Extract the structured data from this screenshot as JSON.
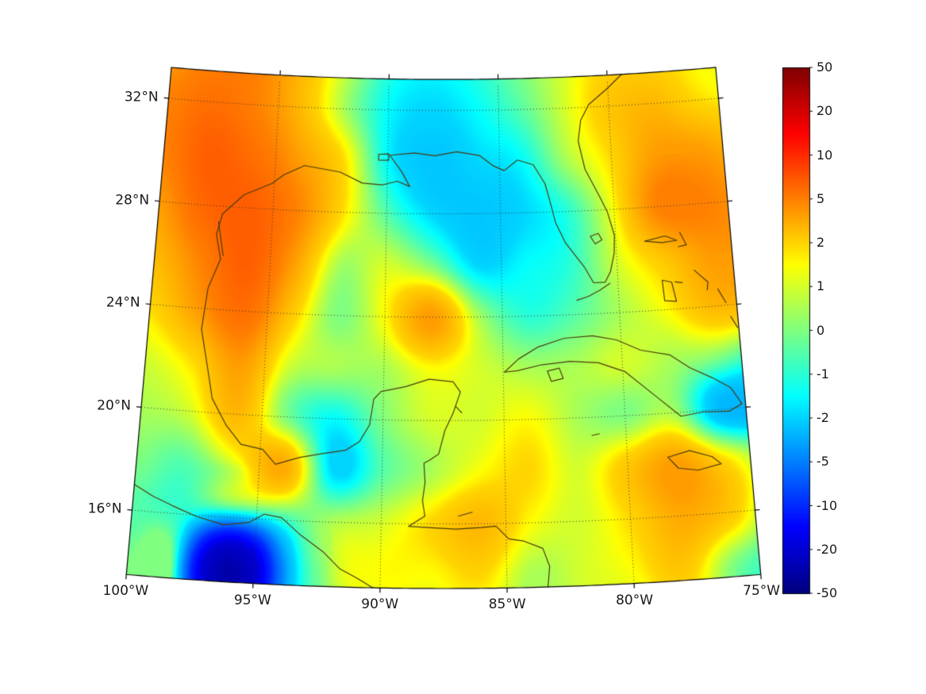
{
  "figure": {
    "background": "#ffffff"
  },
  "map": {
    "projection": {
      "type": "equidistant_conic",
      "std_lat1": 18,
      "std_lat2": 30,
      "central_lon": -87.5
    },
    "extent": {
      "lon_min": -100,
      "lon_max": -75,
      "lat_min": 13.5,
      "lat_max": 33.2
    },
    "grid": {
      "lat_lines": [
        16,
        20,
        24,
        28,
        32
      ],
      "lon_lines": [
        -95,
        -90,
        -85,
        -80
      ],
      "style": "dotted",
      "color": "#333333"
    },
    "border_color": "#000000",
    "coastline_color": "#4a3a0e"
  },
  "axes": {
    "label_color": "#1a1a1a",
    "lat_ticks": [
      {
        "value": 16,
        "label": "16°N"
      },
      {
        "value": 20,
        "label": "20°N"
      },
      {
        "value": 24,
        "label": "24°N"
      },
      {
        "value": 28,
        "label": "28°N"
      },
      {
        "value": 32,
        "label": "32°N"
      }
    ],
    "lon_ticks": [
      {
        "value": -100,
        "label": "100°W"
      },
      {
        "value": -95,
        "label": "95°W"
      },
      {
        "value": -90,
        "label": "90°W"
      },
      {
        "value": -85,
        "label": "85°W"
      },
      {
        "value": -80,
        "label": "80°W"
      },
      {
        "value": -75,
        "label": "75°W"
      }
    ]
  },
  "colorbar": {
    "orientation": "vertical",
    "colormap": "jet",
    "border_color": "#000000",
    "ticks": [
      {
        "value": 50,
        "label": "50"
      },
      {
        "value": 20,
        "label": "20"
      },
      {
        "value": 10,
        "label": "10"
      },
      {
        "value": 5,
        "label": "5"
      },
      {
        "value": 2,
        "label": "2"
      },
      {
        "value": 1,
        "label": "1"
      },
      {
        "value": 0,
        "label": "0"
      },
      {
        "value": -1,
        "label": "-1"
      },
      {
        "value": -2,
        "label": "-2"
      },
      {
        "value": -5,
        "label": "-5"
      },
      {
        "value": -10,
        "label": "-10"
      },
      {
        "value": -20,
        "label": "-20"
      },
      {
        "value": -50,
        "label": "-50"
      }
    ]
  },
  "chart_data": {
    "type": "heatmap",
    "title": "",
    "xlabel": "",
    "ylabel": "",
    "x_axis_ticks": [
      "100°W",
      "95°W",
      "90°W",
      "85°W",
      "80°W",
      "75°W"
    ],
    "y_axis_ticks": [
      "16°N",
      "20°N",
      "24°N",
      "28°N",
      "32°N"
    ],
    "colormap": "jet",
    "scale_ticks": [
      -50,
      -20,
      -10,
      -5,
      -2,
      -1,
      0,
      1,
      2,
      5,
      10,
      20,
      50
    ],
    "lons": [
      -100,
      -98,
      -96,
      -94,
      -92,
      -90,
      -88,
      -86,
      -84,
      -82,
      -80,
      -78,
      -76,
      -74
    ],
    "lats": [
      34,
      32,
      30,
      28,
      26,
      24,
      22,
      20,
      18,
      16,
      14,
      12
    ],
    "values": [
      [
        4,
        5,
        5,
        3,
        1,
        -1,
        -1.5,
        -1,
        0,
        1,
        2,
        2,
        1.5,
        1
      ],
      [
        5,
        6,
        5,
        3,
        0.5,
        -1.5,
        -2,
        -1.5,
        -0.5,
        1,
        2.5,
        3,
        2,
        1.5
      ],
      [
        5,
        7,
        6,
        4,
        2,
        -1.5,
        -2.5,
        -2,
        -1.5,
        0.5,
        2,
        4,
        4,
        3
      ],
      [
        4,
        6.5,
        7,
        5,
        2,
        -0.5,
        -2,
        -2.5,
        -2,
        -1,
        1.5,
        5,
        5,
        4
      ],
      [
        3,
        5,
        7,
        4,
        0.5,
        1,
        0,
        -2,
        -1.5,
        -1,
        1,
        2.5,
        4,
        4
      ],
      [
        2,
        4,
        6,
        2.5,
        0,
        1.5,
        4,
        0.5,
        -1,
        -0.5,
        0.5,
        1.5,
        3,
        3
      ],
      [
        1,
        2,
        4,
        1,
        0.5,
        0.5,
        1.5,
        1,
        0.5,
        0.5,
        1,
        0.5,
        0,
        -1
      ],
      [
        0.5,
        1,
        3,
        0,
        -1.5,
        0,
        1,
        1,
        1.5,
        0.5,
        0,
        0.5,
        -3,
        -3
      ],
      [
        0,
        -0.5,
        1,
        3.5,
        -2,
        -0.5,
        0.5,
        1.5,
        2,
        1,
        2.5,
        4,
        2,
        0
      ],
      [
        -0.5,
        -1,
        -3,
        -1,
        0.5,
        1,
        2,
        3,
        1.5,
        1,
        2,
        3.5,
        2.5,
        0
      ],
      [
        0,
        -2,
        -35,
        -6,
        0.5,
        1.5,
        1.5,
        2,
        0.5,
        1,
        1.5,
        2.5,
        0,
        -1
      ],
      [
        0,
        -1,
        -15,
        -3,
        0,
        1,
        1,
        1,
        0.5,
        1,
        1,
        1.5,
        0,
        -1
      ]
    ]
  },
  "coastlines": [
    [
      [
        -97.15,
        25.95
      ],
      [
        -97.4,
        26.9
      ],
      [
        -97.2,
        27.7
      ],
      [
        -96.3,
        28.5
      ],
      [
        -95.1,
        29.0
      ],
      [
        -94.6,
        29.35
      ],
      [
        -93.7,
        29.75
      ],
      [
        -92.1,
        29.55
      ],
      [
        -91.1,
        29.15
      ],
      [
        -90.2,
        29.1
      ],
      [
        -89.55,
        29.25
      ],
      [
        -89.0,
        29.05
      ],
      [
        -89.35,
        29.6
      ],
      [
        -89.9,
        30.25
      ],
      [
        -88.8,
        30.35
      ],
      [
        -87.9,
        30.25
      ],
      [
        -86.9,
        30.4
      ],
      [
        -85.9,
        30.25
      ],
      [
        -85.3,
        29.85
      ],
      [
        -84.8,
        29.65
      ],
      [
        -84.2,
        30.05
      ],
      [
        -83.5,
        29.85
      ],
      [
        -83.0,
        29.1
      ],
      [
        -82.75,
        28.2
      ],
      [
        -82.6,
        27.6
      ],
      [
        -82.2,
        26.8
      ],
      [
        -81.8,
        26.3
      ],
      [
        -81.4,
        25.8
      ],
      [
        -81.05,
        25.2
      ],
      [
        -80.55,
        25.2
      ],
      [
        -80.3,
        25.6
      ],
      [
        -80.1,
        26.3
      ],
      [
        -80.05,
        27.0
      ],
      [
        -80.3,
        27.9
      ],
      [
        -80.6,
        28.5
      ],
      [
        -81.2,
        29.6
      ],
      [
        -81.45,
        30.7
      ],
      [
        -81.3,
        31.5
      ],
      [
        -80.9,
        32.1
      ],
      [
        -80.0,
        32.7
      ],
      [
        -79.2,
        33.3
      ]
    ],
    [
      [
        -97.15,
        25.95
      ],
      [
        -97.6,
        24.8
      ],
      [
        -97.75,
        23.2
      ],
      [
        -97.35,
        21.6
      ],
      [
        -97.1,
        20.55
      ],
      [
        -96.45,
        19.55
      ],
      [
        -95.8,
        18.85
      ],
      [
        -94.9,
        18.7
      ],
      [
        -94.35,
        18.15
      ],
      [
        -93.4,
        18.45
      ],
      [
        -92.4,
        18.65
      ],
      [
        -91.5,
        18.8
      ],
      [
        -90.95,
        19.15
      ],
      [
        -90.55,
        19.8
      ],
      [
        -90.4,
        20.8
      ],
      [
        -90.1,
        21.1
      ],
      [
        -89.1,
        21.3
      ],
      [
        -88.1,
        21.6
      ],
      [
        -87.1,
        21.5
      ],
      [
        -86.8,
        21.1
      ],
      [
        -87.1,
        20.3
      ],
      [
        -87.45,
        19.6
      ],
      [
        -87.7,
        18.7
      ],
      [
        -88.1,
        18.45
      ],
      [
        -88.3,
        18.35
      ],
      [
        -88.25,
        17.6
      ],
      [
        -88.35,
        16.9
      ],
      [
        -88.25,
        16.3
      ],
      [
        -88.9,
        15.9
      ],
      [
        -88.0,
        15.85
      ],
      [
        -87.0,
        15.8
      ],
      [
        -86.0,
        15.85
      ],
      [
        -85.4,
        15.9
      ],
      [
        -84.9,
        15.4
      ],
      [
        -84.3,
        15.3
      ],
      [
        -83.55,
        15.0
      ],
      [
        -83.3,
        14.3
      ],
      [
        -83.4,
        13.4
      ]
    ],
    [
      [
        -100.2,
        17.1
      ],
      [
        -99.2,
        16.6
      ],
      [
        -98.4,
        16.3
      ],
      [
        -97.4,
        15.95
      ],
      [
        -96.3,
        15.7
      ],
      [
        -95.3,
        15.85
      ],
      [
        -94.7,
        16.2
      ],
      [
        -94.0,
        16.1
      ],
      [
        -93.2,
        15.45
      ],
      [
        -92.3,
        14.85
      ],
      [
        -91.6,
        14.2
      ],
      [
        -90.9,
        13.85
      ],
      [
        -90.2,
        13.45
      ]
    ],
    [
      [
        -84.95,
        21.85
      ],
      [
        -84.35,
        22.35
      ],
      [
        -83.5,
        22.8
      ],
      [
        -82.4,
        23.1
      ],
      [
        -81.2,
        23.15
      ],
      [
        -80.2,
        22.95
      ],
      [
        -79.2,
        22.5
      ],
      [
        -78.0,
        22.25
      ],
      [
        -77.2,
        21.7
      ],
      [
        -76.3,
        21.25
      ],
      [
        -75.55,
        20.8
      ],
      [
        -75.15,
        20.15
      ],
      [
        -75.7,
        19.9
      ],
      [
        -76.8,
        19.95
      ],
      [
        -77.7,
        19.85
      ],
      [
        -78.7,
        20.7
      ],
      [
        -79.9,
        21.7
      ],
      [
        -81.0,
        22.1
      ],
      [
        -82.2,
        22.2
      ],
      [
        -83.4,
        22.1
      ],
      [
        -84.4,
        21.9
      ],
      [
        -84.95,
        21.85
      ]
    ],
    [
      [
        -83.15,
        21.85
      ],
      [
        -82.65,
        21.95
      ],
      [
        -82.5,
        21.55
      ],
      [
        -83.0,
        21.45
      ],
      [
        -83.15,
        21.85
      ]
    ],
    [
      [
        -78.35,
        18.3
      ],
      [
        -77.45,
        18.5
      ],
      [
        -76.55,
        18.2
      ],
      [
        -76.2,
        17.9
      ],
      [
        -77.15,
        17.72
      ],
      [
        -77.95,
        17.85
      ],
      [
        -78.35,
        18.3
      ]
    ],
    [
      [
        -78.1,
        25.15
      ],
      [
        -77.7,
        25.05
      ],
      [
        -77.55,
        24.3
      ],
      [
        -78.05,
        24.35
      ],
      [
        -78.1,
        25.15
      ]
    ],
    [
      [
        -78.75,
        26.7
      ],
      [
        -78.0,
        26.6
      ],
      [
        -77.35,
        26.65
      ],
      [
        -77.85,
        26.85
      ],
      [
        -78.75,
        26.7
      ]
    ],
    [
      [
        -77.2,
        26.95
      ],
      [
        -76.95,
        26.45
      ],
      [
        -77.3,
        26.4
      ]
    ],
    [
      [
        -76.7,
        25.45
      ],
      [
        -76.15,
        24.95
      ],
      [
        -76.2,
        24.65
      ]
    ],
    [
      [
        -75.75,
        24.65
      ],
      [
        -75.45,
        24.1
      ]
    ],
    [
      [
        -75.3,
        23.55
      ],
      [
        -75.05,
        23.1
      ]
    ],
    [
      [
        -77.55,
        25.05
      ],
      [
        -77.25,
        25.0
      ]
    ],
    [
      [
        -81.8,
        24.55
      ],
      [
        -81.3,
        24.68
      ],
      [
        -80.8,
        24.9
      ],
      [
        -80.35,
        25.15
      ]
    ],
    [
      [
        -81.1,
        27.0
      ],
      [
        -80.75,
        27.1
      ],
      [
        -80.6,
        26.85
      ],
      [
        -80.9,
        26.7
      ],
      [
        -81.1,
        27.0
      ]
    ],
    [
      [
        -87.0,
        20.55
      ],
      [
        -86.75,
        20.3
      ]
    ],
    [
      [
        -86.9,
        16.3
      ],
      [
        -86.35,
        16.45
      ]
    ],
    [
      [
        -81.4,
        19.3
      ],
      [
        -81.1,
        19.35
      ]
    ],
    [
      [
        -90.4,
        30.28
      ],
      [
        -89.95,
        30.3
      ],
      [
        -89.95,
        30.05
      ],
      [
        -90.4,
        30.05
      ],
      [
        -90.4,
        30.28
      ]
    ],
    [
      [
        -97.35,
        27.4
      ],
      [
        -97.05,
        26.1
      ]
    ]
  ]
}
